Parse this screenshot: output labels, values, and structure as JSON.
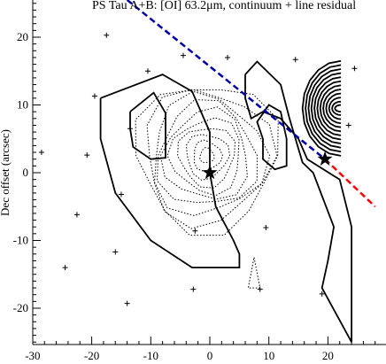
{
  "chart_data": {
    "type": "contour",
    "title": "PS Tau A+B: [OI] 63.2μm, continuum + line residual",
    "xlabel": "",
    "ylabel": "Dec offset (arcsec)",
    "xlim": [
      -31,
      28
    ],
    "ylim": [
      -25.5,
      25
    ],
    "x_ticks": [
      -30,
      -20,
      -10,
      0,
      10,
      20
    ],
    "y_ticks": [
      -20,
      -10,
      0,
      10,
      20
    ],
    "colors": {
      "blue_line": "#0000aa",
      "red_line": "#ff0000",
      "contour": "#000000"
    },
    "stars": [
      {
        "x": 0,
        "y": 0
      },
      {
        "x": 19.5,
        "y": 2
      }
    ],
    "plus_markers": [
      [
        -17.5,
        20.3
      ],
      [
        -4.5,
        17.3
      ],
      [
        3,
        17
      ],
      [
        14.5,
        16.7
      ],
      [
        -19.5,
        11.3
      ],
      [
        -10.5,
        15
      ],
      [
        -28.5,
        3
      ],
      [
        -20.8,
        2.6
      ],
      [
        -13.5,
        6.5
      ],
      [
        -15,
        -3.2
      ],
      [
        -22.5,
        -6.2
      ],
      [
        -24.5,
        -14
      ],
      [
        -16,
        -11.7
      ],
      [
        -2.5,
        -8.6
      ],
      [
        9.5,
        -8.1
      ],
      [
        8.5,
        -17.2
      ],
      [
        -2.8,
        -17.2
      ],
      [
        -14,
        -19.3
      ],
      [
        19,
        -17.9
      ],
      [
        23.5,
        7
      ],
      [
        24.5,
        15.4
      ]
    ],
    "blue_line": [
      [
        -14,
        25.5
      ],
      [
        19.5,
        2
      ]
    ],
    "red_line": [
      [
        19.5,
        2
      ],
      [
        28,
        -5
      ]
    ],
    "solid_contours": [
      [
        [
          -18.5,
          11
        ],
        [
          -8,
          14.5
        ],
        [
          -3,
          12
        ],
        [
          0,
          6
        ],
        [
          0,
          0
        ],
        [
          1,
          -5
        ],
        [
          4,
          -10
        ],
        [
          5,
          -12
        ],
        [
          5,
          -14
        ],
        [
          -3,
          -14
        ],
        [
          -10,
          -10
        ],
        [
          -16,
          -3
        ],
        [
          -18.5,
          5
        ],
        [
          -18.5,
          11
        ]
      ],
      [
        [
          -13.5,
          9
        ],
        [
          -9.5,
          11.8
        ],
        [
          -7.5,
          8.8
        ],
        [
          -7.5,
          2.2
        ],
        [
          -10,
          2
        ],
        [
          -13,
          3.8
        ],
        [
          -13.5,
          6.5
        ],
        [
          -13.5,
          9
        ]
      ],
      [
        [
          6,
          14.5
        ],
        [
          8,
          16.4
        ],
        [
          12,
          13
        ],
        [
          13.5,
          8
        ],
        [
          15.7,
          1.5
        ],
        [
          17.5,
          0
        ],
        [
          21,
          -8
        ],
        [
          20,
          -13
        ],
        [
          19,
          -17
        ],
        [
          24,
          -25
        ],
        [
          24,
          -8
        ],
        [
          22,
          -1
        ],
        [
          16.5,
          2
        ],
        [
          15,
          5
        ],
        [
          12,
          8
        ],
        [
          9,
          9
        ],
        [
          7,
          8
        ],
        [
          6,
          11
        ],
        [
          6,
          14.5
        ]
      ],
      [
        [
          9,
          5
        ],
        [
          8,
          7.5
        ],
        [
          10,
          10
        ],
        [
          12,
          9
        ],
        [
          13,
          5
        ],
        [
          13,
          1
        ],
        [
          11,
          0.5
        ],
        [
          9,
          2
        ],
        [
          9,
          5
        ]
      ]
    ],
    "solid_nested_contours": [
      {
        "cx": 22.2,
        "cy": 9.5,
        "rx": [
          6.5,
          6,
          5.5,
          5,
          4.5,
          4,
          3.5,
          3,
          2.5,
          2,
          1.5,
          1
        ],
        "ry": [
          7,
          6.4,
          5.8,
          5.2,
          4.6,
          4,
          3.4,
          2.8,
          2.2,
          1.6,
          1,
          0.5
        ]
      }
    ],
    "dotted_contours": [
      {
        "cx": -0.5,
        "cy": 2.5,
        "rx": [
          12,
          10.8,
          9.6,
          8.4,
          7.2,
          6,
          4.8,
          3.6,
          2.4,
          1.2
        ],
        "ry": [
          11,
          9.9,
          8.8,
          7.7,
          6.6,
          5.5,
          4.4,
          3.3,
          2.2,
          1.1
        ]
      }
    ],
    "dotted_extra": [
      [
        [
          7.5,
          -12.5
        ],
        [
          8.5,
          -17
        ],
        [
          6.5,
          -17
        ],
        [
          7.5,
          -12.5
        ]
      ]
    ]
  }
}
